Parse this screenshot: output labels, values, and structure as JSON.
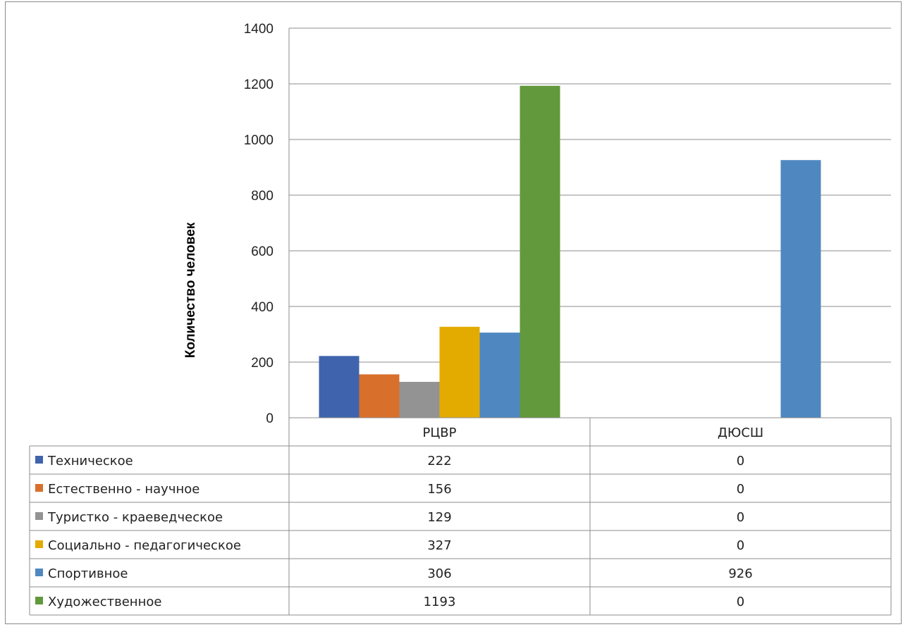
{
  "chart_data": {
    "type": "bar",
    "title": "",
    "xlabel": "",
    "ylabel": "Количество человек",
    "categories": [
      "РЦВР",
      "ДЮСШ"
    ],
    "ylim": [
      0,
      1400
    ],
    "yticks": [
      0,
      200,
      400,
      600,
      800,
      1000,
      1200,
      1400
    ],
    "grid": true,
    "legend": "data-table",
    "series": [
      {
        "name": "Техническое",
        "values": [
          222,
          0
        ],
        "color": "#3f64ad"
      },
      {
        "name": "Естественно - научное",
        "values": [
          156,
          0
        ],
        "color": "#d86f2b"
      },
      {
        "name": "Туристко - краеведческое",
        "values": [
          129,
          0
        ],
        "color": "#939393"
      },
      {
        "name": "Социально - педагогическое",
        "values": [
          327,
          0
        ],
        "color": "#e3ab00"
      },
      {
        "name": "Спортивное",
        "values": [
          306,
          926
        ],
        "color": "#4f88c0"
      },
      {
        "name": "Художественное",
        "values": [
          1193,
          0
        ],
        "color": "#62993c"
      }
    ]
  }
}
